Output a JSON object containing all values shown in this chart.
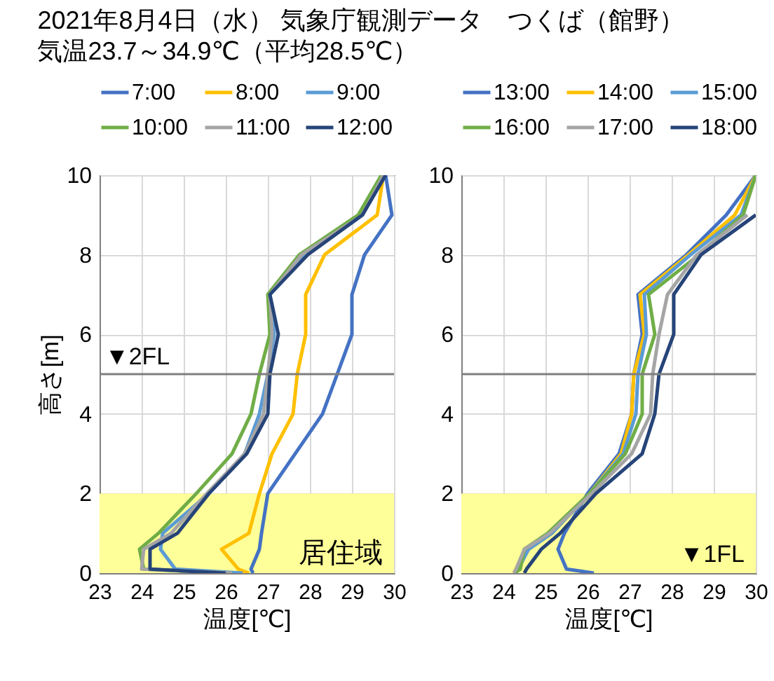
{
  "chart_data": [
    {
      "type": "line",
      "title": "2021年8月4日（水） 気象庁観測データ　つくば（館野）",
      "subtitle": "気温23.7～34.9℃（平均28.5℃）",
      "xlabel": "温度[℃]",
      "ylabel": "高さ[m]",
      "legend": "top",
      "grid": true,
      "xlim": [
        23,
        30
      ],
      "xticks": [
        23,
        24,
        25,
        26,
        27,
        28,
        29,
        30
      ],
      "ylim": [
        0,
        10
      ],
      "yticks": [
        0,
        2,
        4,
        6,
        8,
        10
      ],
      "series": [
        {
          "name": "7:00",
          "color": "#4472c4",
          "x": [
            26.65,
            26.6,
            26.8,
            26.85,
            27.0,
            27.65,
            28.3,
            28.65,
            29.0,
            29.0,
            29.3,
            29.95,
            29.8
          ],
          "values": [
            0,
            0.1,
            0.6,
            1,
            2,
            3,
            4,
            5,
            6,
            7,
            8,
            9,
            10
          ]
        },
        {
          "name": "8:00",
          "color": "#ffc000",
          "x": [
            26.55,
            26.3,
            25.9,
            26.55,
            26.8,
            27.1,
            27.6,
            27.7,
            27.9,
            27.9,
            28.35,
            29.6,
            29.75
          ],
          "values": [
            0,
            0.1,
            0.6,
            1,
            2,
            3,
            4,
            5,
            6,
            7,
            8,
            9,
            10
          ]
        },
        {
          "name": "9:00",
          "color": "#5b9bd5",
          "x": [
            26.4,
            24.8,
            24.45,
            24.5,
            25.6,
            26.45,
            26.8,
            27.0,
            27.15,
            27.05,
            27.9,
            29.25,
            29.75
          ],
          "values": [
            0,
            0.1,
            0.6,
            1,
            2,
            3,
            4,
            5,
            6,
            7,
            8,
            9,
            10
          ]
        },
        {
          "name": "10:00",
          "color": "#70ad47",
          "x": [
            26.05,
            24.05,
            23.95,
            24.4,
            25.3,
            26.15,
            26.6,
            26.8,
            27.05,
            27.0,
            27.75,
            29.15,
            29.7
          ],
          "values": [
            0,
            0.1,
            0.6,
            1,
            2,
            3,
            4,
            5,
            6,
            7,
            8,
            9,
            10
          ]
        },
        {
          "name": "11:00",
          "color": "#a5a5a5",
          "x": [
            26.15,
            24.0,
            24.05,
            24.7,
            25.55,
            26.45,
            26.9,
            27.0,
            27.1,
            27.05,
            27.8,
            29.25,
            29.75
          ],
          "values": [
            0,
            0.1,
            0.6,
            1,
            2,
            3,
            4,
            5,
            6,
            7,
            8,
            9,
            10
          ]
        },
        {
          "name": "12:00",
          "color": "#264478",
          "x": [
            26.0,
            24.2,
            24.2,
            24.85,
            25.6,
            26.5,
            27.0,
            27.05,
            27.25,
            27.05,
            27.95,
            29.25,
            29.8
          ],
          "values": [
            0,
            0.1,
            0.6,
            1,
            2,
            3,
            4,
            5,
            6,
            7,
            8,
            9,
            10
          ]
        }
      ],
      "ref_lines": [
        {
          "axis": "y",
          "value": 5,
          "label": "▼2FL",
          "color": "#7f7f7f"
        }
      ],
      "bands": [
        {
          "axis": "y",
          "from": 0,
          "to": 2,
          "label": "居住域",
          "color": "#ffff99"
        }
      ]
    },
    {
      "type": "line",
      "xlabel": "温度[℃]",
      "legend": "top",
      "grid": true,
      "xlim": [
        23,
        30
      ],
      "xticks": [
        23,
        24,
        25,
        26,
        27,
        28,
        29,
        30
      ],
      "ylim": [
        0,
        10
      ],
      "yticks": [
        0,
        2,
        4,
        6,
        8,
        10
      ],
      "series": [
        {
          "name": "13:00",
          "color": "#4472c4",
          "x": [
            26.15,
            25.5,
            25.3,
            25.45,
            26.0,
            26.75,
            27.05,
            27.1,
            27.3,
            27.2,
            28.35,
            29.3,
            30.0
          ],
          "values": [
            0,
            0.1,
            0.6,
            1,
            2,
            3,
            4,
            5,
            6,
            7,
            8,
            9,
            10
          ]
        },
        {
          "name": "14:00",
          "color": "#ffc000",
          "x": [
            24.25,
            24.3,
            24.6,
            25.15,
            26.05,
            26.8,
            27.05,
            27.1,
            27.35,
            27.25,
            28.4,
            29.5,
            30.0
          ],
          "values": [
            0,
            0.1,
            0.6,
            1,
            2,
            3,
            4,
            5,
            6,
            7,
            8,
            9,
            10
          ]
        },
        {
          "name": "15:00",
          "color": "#5b9bd5",
          "x": [
            24.3,
            24.35,
            24.6,
            25.15,
            26.05,
            26.85,
            27.15,
            27.2,
            27.4,
            27.35,
            28.45,
            29.65,
            30.0
          ],
          "values": [
            0,
            0.1,
            0.6,
            1,
            2,
            3,
            4,
            5,
            6,
            7,
            8,
            9,
            10
          ]
        },
        {
          "name": "16:00",
          "color": "#70ad47",
          "x": [
            24.25,
            24.4,
            24.5,
            25.05,
            26.05,
            26.9,
            27.3,
            27.3,
            27.6,
            27.45,
            28.65,
            29.7,
            30.0
          ],
          "values": [
            0,
            0.1,
            0.6,
            1,
            2,
            3,
            4,
            5,
            6,
            7,
            8,
            9,
            10
          ]
        },
        {
          "name": "17:00",
          "color": "#a5a5a5",
          "x": [
            24.25,
            24.3,
            24.5,
            25.1,
            26.1,
            27.05,
            27.5,
            27.55,
            27.7,
            27.9,
            28.6,
            29.8
          ],
          "values": [
            0,
            0.1,
            0.6,
            1,
            2,
            3,
            4,
            5,
            6,
            7,
            8,
            9
          ]
        },
        {
          "name": "18:00",
          "color": "#264478",
          "x": [
            24.5,
            24.55,
            24.9,
            25.35,
            26.2,
            27.3,
            27.6,
            27.7,
            28.05,
            28.05,
            28.7,
            30.0
          ],
          "values": [
            0,
            0.1,
            0.6,
            1,
            2,
            3,
            4,
            5,
            6,
            7,
            8,
            9
          ]
        }
      ],
      "ref_lines": [
        {
          "axis": "y",
          "value": 5,
          "color": "#7f7f7f"
        }
      ],
      "bands": [
        {
          "axis": "y",
          "from": 0,
          "to": 2,
          "color": "#ffff99"
        }
      ],
      "annotations": [
        "▼1FL"
      ]
    }
  ]
}
